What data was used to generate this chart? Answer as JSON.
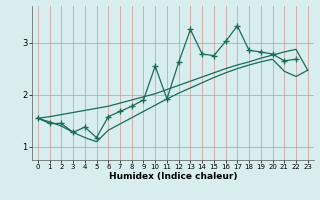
{
  "title": "",
  "xlabel": "Humidex (Indice chaleur)",
  "bg_color": "#d8eeee",
  "grid_color": "#b8d8d8",
  "line_color": "#1a6b5a",
  "x_data": [
    0,
    1,
    2,
    3,
    4,
    5,
    6,
    7,
    8,
    9,
    10,
    11,
    12,
    13,
    14,
    15,
    16,
    17,
    18,
    19,
    20,
    21,
    22,
    23
  ],
  "y_main": [
    1.55,
    1.45,
    1.45,
    1.28,
    1.38,
    1.18,
    1.58,
    1.68,
    1.78,
    1.9,
    2.55,
    1.92,
    2.62,
    3.25,
    2.78,
    2.75,
    3.02,
    3.32,
    2.85,
    2.82,
    2.78,
    2.65,
    2.68,
    null
  ],
  "y_upper": [
    1.55,
    1.58,
    1.62,
    1.66,
    1.7,
    1.74,
    1.78,
    1.84,
    1.9,
    1.96,
    2.02,
    2.1,
    2.18,
    2.26,
    2.34,
    2.42,
    2.5,
    2.57,
    2.63,
    2.7,
    2.76,
    2.82,
    2.87,
    2.47
  ],
  "y_lower": [
    1.55,
    1.48,
    1.4,
    1.28,
    1.18,
    1.1,
    1.32,
    1.44,
    1.56,
    1.68,
    1.8,
    1.92,
    2.03,
    2.13,
    2.23,
    2.33,
    2.42,
    2.5,
    2.57,
    2.63,
    2.68,
    2.45,
    2.35,
    2.47
  ],
  "xlim": [
    -0.5,
    23.5
  ],
  "ylim": [
    0.75,
    3.7
  ],
  "yticks": [
    1,
    2,
    3
  ],
  "xticks": [
    0,
    1,
    2,
    3,
    4,
    5,
    6,
    7,
    8,
    9,
    10,
    11,
    12,
    13,
    14,
    15,
    16,
    17,
    18,
    19,
    20,
    21,
    22,
    23
  ],
  "markersize": 4,
  "linewidth": 0.9
}
